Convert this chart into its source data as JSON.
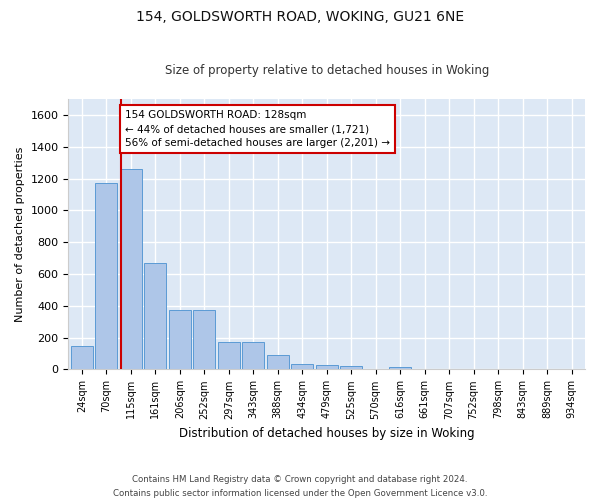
{
  "title1": "154, GOLDSWORTH ROAD, WOKING, GU21 6NE",
  "title2": "Size of property relative to detached houses in Woking",
  "xlabel": "Distribution of detached houses by size in Woking",
  "ylabel": "Number of detached properties",
  "bar_color": "#aec6e8",
  "bar_edge_color": "#5b9bd5",
  "background_color": "#dde8f5",
  "grid_color": "#ffffff",
  "categories": [
    "24sqm",
    "70sqm",
    "115sqm",
    "161sqm",
    "206sqm",
    "252sqm",
    "297sqm",
    "343sqm",
    "388sqm",
    "434sqm",
    "479sqm",
    "525sqm",
    "570sqm",
    "616sqm",
    "661sqm",
    "707sqm",
    "752sqm",
    "798sqm",
    "843sqm",
    "889sqm",
    "934sqm"
  ],
  "values": [
    148,
    1170,
    1260,
    672,
    375,
    375,
    170,
    170,
    88,
    35,
    25,
    22,
    0,
    18,
    0,
    0,
    0,
    0,
    0,
    0,
    0
  ],
  "ylim": [
    0,
    1700
  ],
  "yticks": [
    0,
    200,
    400,
    600,
    800,
    1000,
    1200,
    1400,
    1600
  ],
  "property_line_color": "#cc0000",
  "annotation_text": "154 GOLDSWORTH ROAD: 128sqm\n← 44% of detached houses are smaller (1,721)\n56% of semi-detached houses are larger (2,201) →",
  "annotation_box_color": "#ffffff",
  "annotation_box_edge": "#cc0000",
  "footer1": "Contains HM Land Registry data © Crown copyright and database right 2024.",
  "footer2": "Contains public sector information licensed under the Open Government Licence v3.0."
}
